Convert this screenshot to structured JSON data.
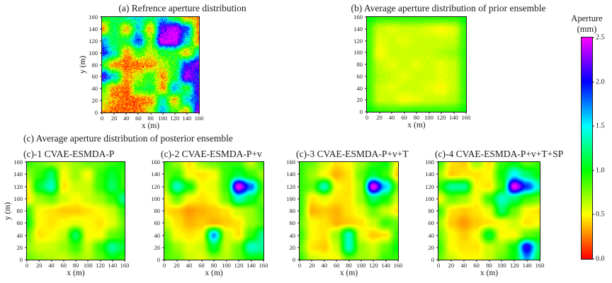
{
  "figure": {
    "section_c_header": "(c) Average aperture distribution of posterior ensemble",
    "background": "#ffffff"
  },
  "axes": {
    "xlabel": "x (m)",
    "ylabel": "y (m)",
    "xticks": [
      "0",
      "20",
      "40",
      "60",
      "80",
      "100",
      "120",
      "140",
      "160"
    ],
    "yticks": [
      "0",
      "20",
      "40",
      "60",
      "80",
      "100",
      "120",
      "140",
      "160"
    ]
  },
  "colorbar": {
    "title_line1": "Aperture",
    "title_line2": "(mm)",
    "ticks": [
      "2.5",
      "2.0",
      "1.5",
      "1.0",
      "0.5",
      "0.0"
    ],
    "min": 0.0,
    "max": 2.5,
    "stops": [
      [
        0.0,
        "#ff0000"
      ],
      [
        0.5,
        "#ffff00"
      ],
      [
        1.0,
        "#00ff00"
      ],
      [
        1.5,
        "#00ffff"
      ],
      [
        2.0,
        "#0000ff"
      ],
      [
        2.5,
        "#ff00ff"
      ]
    ]
  },
  "chart_data": [
    {
      "type": "heatmap",
      "panel": "a",
      "title": "(a) Refrence aperture distribution",
      "xlabel": "x (m)",
      "ylabel": "y (m)",
      "x_range": [
        0,
        160
      ],
      "y_range": [
        0,
        160
      ],
      "value_unit": "mm",
      "value_range": [
        0,
        2.5
      ],
      "noise": 0.55,
      "grid_note": "approx aperture (mm) at x=0..160 step 20 (cols), rows from y=160 down to y=0",
      "values": [
        [
          1.0,
          1.1,
          1.3,
          1.5,
          1.2,
          1.6,
          1.1,
          0.4,
          0.3
        ],
        [
          0.3,
          1.2,
          0.4,
          1.5,
          0.4,
          2.2,
          2.5,
          1.9,
          0.3
        ],
        [
          1.7,
          1.1,
          1.1,
          1.9,
          0.8,
          2.5,
          2.5,
          1.5,
          0.3
        ],
        [
          2.0,
          1.4,
          0.3,
          0.9,
          0.6,
          1.0,
          1.0,
          0.4,
          1.4
        ],
        [
          1.0,
          0.3,
          0.2,
          0.2,
          0.3,
          0.6,
          1.0,
          2.0,
          2.3
        ],
        [
          2.1,
          1.5,
          0.3,
          0.6,
          1.0,
          0.3,
          1.0,
          2.4,
          2.0
        ],
        [
          0.9,
          0.3,
          0.2,
          1.0,
          1.1,
          0.3,
          1.6,
          1.0,
          2.2
        ],
        [
          0.7,
          0.3,
          0.2,
          0.2,
          0.3,
          1.4,
          0.4,
          1.5,
          2.0
        ],
        [
          0.3,
          0.2,
          0.2,
          0.2,
          0.6,
          1.6,
          0.9,
          0.4,
          2.4
        ]
      ]
    },
    {
      "type": "heatmap",
      "panel": "b",
      "title": "(b) Average aperture distribution of prior ensemble",
      "xlabel": "x (m)",
      "ylabel": "y (m)",
      "x_range": [
        0,
        160
      ],
      "y_range": [
        0,
        160
      ],
      "value_unit": "mm",
      "value_range": [
        0,
        2.5
      ],
      "noise": 0.08,
      "grid_note": "approx aperture (mm) at x=0..160 step 20 (cols), rows from y=160 down to y=0",
      "values": [
        [
          1.0,
          0.9,
          0.9,
          0.9,
          0.9,
          0.9,
          0.9,
          0.9,
          1.0
        ],
        [
          0.9,
          0.6,
          0.55,
          0.6,
          0.6,
          0.55,
          0.5,
          0.55,
          0.9
        ],
        [
          0.9,
          0.55,
          0.6,
          0.55,
          0.6,
          0.6,
          0.6,
          0.6,
          0.9
        ],
        [
          0.9,
          0.5,
          0.6,
          0.6,
          0.6,
          0.6,
          0.65,
          0.7,
          0.9
        ],
        [
          0.9,
          0.6,
          0.55,
          0.6,
          0.55,
          0.6,
          0.55,
          0.6,
          0.9
        ],
        [
          0.9,
          0.65,
          0.6,
          0.55,
          0.6,
          0.6,
          0.55,
          0.6,
          0.9
        ],
        [
          0.9,
          0.6,
          0.55,
          0.6,
          0.6,
          0.55,
          0.5,
          0.6,
          0.9
        ],
        [
          0.9,
          0.6,
          0.6,
          0.5,
          0.55,
          0.6,
          0.6,
          0.65,
          0.9
        ],
        [
          1.0,
          0.9,
          0.85,
          0.9,
          0.9,
          0.9,
          0.9,
          0.9,
          1.0
        ]
      ]
    },
    {
      "type": "heatmap",
      "panel": "c-1",
      "title": "(c)-1 CVAE-ESMDA-P",
      "xlabel": "x (m)",
      "ylabel": "y (m)",
      "x_range": [
        0,
        160
      ],
      "y_range": [
        0,
        160
      ],
      "value_unit": "mm",
      "value_range": [
        0,
        2.5
      ],
      "noise": 0.04,
      "grid_note": "approx aperture (mm) at x=0..160 step 20 (cols), rows from y=160 down to y=0",
      "values": [
        [
          0.9,
          0.8,
          0.7,
          0.6,
          0.7,
          0.8,
          0.8,
          0.9,
          1.0
        ],
        [
          0.7,
          0.9,
          1.2,
          0.5,
          0.7,
          0.5,
          0.9,
          1.1,
          0.9
        ],
        [
          0.5,
          1.1,
          1.4,
          0.45,
          0.6,
          0.6,
          0.9,
          1.2,
          0.9
        ],
        [
          0.45,
          0.7,
          0.8,
          0.6,
          0.5,
          0.6,
          0.7,
          0.9,
          1.3
        ],
        [
          0.9,
          0.5,
          0.45,
          0.4,
          0.4,
          0.45,
          0.5,
          0.6,
          0.9
        ],
        [
          1.0,
          0.5,
          0.45,
          0.5,
          0.55,
          0.5,
          0.45,
          0.55,
          0.8
        ],
        [
          0.8,
          0.45,
          0.5,
          0.6,
          1.2,
          0.5,
          0.5,
          0.8,
          0.9
        ],
        [
          0.7,
          0.6,
          0.6,
          0.7,
          0.9,
          0.6,
          0.9,
          1.3,
          1.1
        ],
        [
          0.8,
          0.7,
          0.65,
          0.6,
          0.7,
          0.65,
          0.8,
          1.0,
          0.9
        ]
      ]
    },
    {
      "type": "heatmap",
      "panel": "c-2",
      "title": "(c)-2 CVAE-ESMDA-P+v",
      "xlabel": "x (m)",
      "ylabel": "y (m)",
      "x_range": [
        0,
        160
      ],
      "y_range": [
        0,
        160
      ],
      "value_unit": "mm",
      "value_range": [
        0,
        2.5
      ],
      "noise": 0.04,
      "grid_note": "approx aperture (mm) at x=0..160 step 20 (cols), rows from y=160 down to y=0",
      "values": [
        [
          0.9,
          0.7,
          0.45,
          0.7,
          0.8,
          0.9,
          0.9,
          0.6,
          0.9
        ],
        [
          0.8,
          0.9,
          0.5,
          0.45,
          0.5,
          0.9,
          1.1,
          0.9,
          0.7
        ],
        [
          0.7,
          1.4,
          1.0,
          0.5,
          0.55,
          0.9,
          2.5,
          1.8,
          0.9
        ],
        [
          0.5,
          0.8,
          0.5,
          0.45,
          0.5,
          0.8,
          1.4,
          1.1,
          0.8
        ],
        [
          0.45,
          0.4,
          0.3,
          0.35,
          0.4,
          0.45,
          0.6,
          0.7,
          0.9
        ],
        [
          0.6,
          0.45,
          0.35,
          0.4,
          0.35,
          0.4,
          0.45,
          0.7,
          0.85
        ],
        [
          0.8,
          0.5,
          0.45,
          0.5,
          1.7,
          0.6,
          0.45,
          0.9,
          1.3
        ],
        [
          0.9,
          0.7,
          0.55,
          0.6,
          1.1,
          0.6,
          0.8,
          1.4,
          1.3
        ],
        [
          0.85,
          0.8,
          0.6,
          0.55,
          0.7,
          0.65,
          0.8,
          1.0,
          1.0
        ]
      ]
    },
    {
      "type": "heatmap",
      "panel": "c-3",
      "title": "(c)-3 CVAE-ESMDA-P+v+T",
      "xlabel": "x (m)",
      "ylabel": "y (m)",
      "x_range": [
        0,
        160
      ],
      "y_range": [
        0,
        160
      ],
      "value_unit": "mm",
      "value_range": [
        0,
        2.5
      ],
      "noise": 0.04,
      "grid_note": "approx aperture (mm) at x=0..160 step 20 (cols), rows from y=160 down to y=0",
      "values": [
        [
          0.9,
          0.8,
          0.6,
          0.45,
          0.5,
          0.7,
          0.9,
          1.0,
          0.5
        ],
        [
          0.9,
          0.7,
          0.5,
          0.35,
          0.45,
          0.8,
          1.1,
          0.9,
          0.4
        ],
        [
          0.9,
          0.8,
          1.4,
          0.5,
          0.45,
          0.7,
          2.5,
          1.6,
          0.8
        ],
        [
          0.9,
          0.45,
          0.55,
          0.45,
          0.45,
          0.7,
          1.2,
          1.0,
          0.6
        ],
        [
          0.9,
          0.35,
          0.4,
          0.35,
          0.45,
          0.55,
          0.8,
          0.6,
          0.45
        ],
        [
          0.8,
          0.5,
          0.45,
          0.35,
          0.4,
          0.45,
          0.6,
          0.9,
          0.8
        ],
        [
          0.9,
          0.5,
          0.45,
          0.7,
          1.4,
          0.55,
          0.4,
          0.45,
          0.9
        ],
        [
          0.8,
          0.45,
          0.4,
          0.6,
          1.4,
          0.7,
          0.6,
          0.8,
          1.0
        ],
        [
          0.9,
          0.6,
          0.55,
          0.5,
          0.8,
          0.7,
          0.65,
          0.9,
          0.9
        ]
      ]
    },
    {
      "type": "heatmap",
      "panel": "c-4",
      "title": "(c)-4 CVAE-ESMDA-P+v+T+SP",
      "xlabel": "x (m)",
      "ylabel": "y (m)",
      "x_range": [
        0,
        160
      ],
      "y_range": [
        0,
        160
      ],
      "value_unit": "mm",
      "value_range": [
        0,
        2.5
      ],
      "noise": 0.04,
      "grid_note": "approx aperture (mm) at x=0..160 step 20 (cols), rows from y=160 down to y=0",
      "values": [
        [
          0.9,
          0.45,
          0.4,
          0.7,
          0.45,
          0.9,
          1.0,
          0.8,
          0.9
        ],
        [
          0.7,
          0.4,
          0.45,
          0.45,
          0.5,
          1.0,
          1.5,
          1.2,
          1.0
        ],
        [
          0.9,
          1.3,
          1.3,
          0.5,
          0.45,
          0.9,
          2.5,
          1.9,
          1.4
        ],
        [
          0.5,
          0.8,
          0.7,
          0.5,
          0.9,
          1.4,
          1.2,
          0.9,
          0.8
        ],
        [
          0.9,
          0.45,
          0.4,
          0.45,
          0.55,
          1.2,
          0.8,
          0.5,
          0.45
        ],
        [
          0.7,
          0.4,
          0.3,
          0.4,
          0.45,
          0.5,
          0.6,
          0.45,
          0.5
        ],
        [
          0.8,
          0.5,
          0.4,
          0.5,
          1.1,
          0.5,
          0.5,
          0.8,
          0.9
        ],
        [
          0.9,
          0.5,
          0.45,
          0.45,
          0.6,
          0.7,
          1.0,
          2.1,
          1.2
        ],
        [
          0.8,
          0.6,
          0.5,
          0.5,
          0.6,
          0.8,
          1.0,
          1.7,
          1.1
        ]
      ]
    }
  ]
}
